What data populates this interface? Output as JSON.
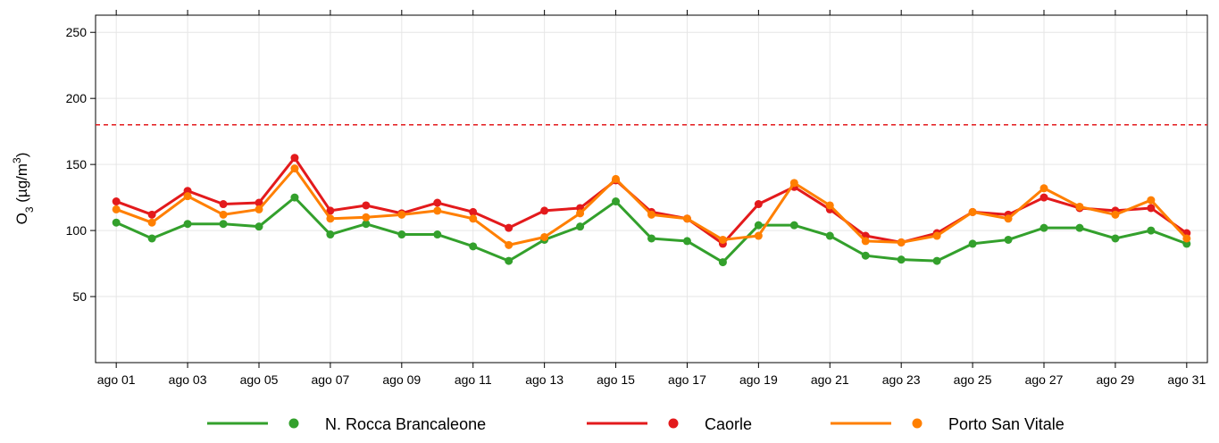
{
  "chart_data": {
    "type": "line",
    "ylabel": {
      "base": "O",
      "sub": "3",
      "mid": " (µg/m",
      "sup": "3",
      "end": ")"
    },
    "categories": [
      "ago 01",
      null,
      "ago 03",
      null,
      "ago 05",
      null,
      "ago 07",
      null,
      "ago 09",
      null,
      "ago 11",
      null,
      "ago 13",
      null,
      "ago 15",
      null,
      "ago 17",
      null,
      "ago 19",
      null,
      "ago 21",
      null,
      "ago 23",
      null,
      "ago 25",
      null,
      "ago 27",
      null,
      "ago 29",
      null,
      "ago 31"
    ],
    "series": [
      {
        "name": "N. Rocca Brancaleone",
        "color": "#33a02c",
        "values": [
          106,
          94,
          105,
          105,
          103,
          125,
          97,
          105,
          97,
          97,
          88,
          77,
          93,
          103,
          122,
          94,
          92,
          76,
          104,
          104,
          96,
          81,
          78,
          77,
          90,
          93,
          102,
          102,
          94,
          100,
          90
        ]
      },
      {
        "name": "Caorle",
        "color": "#e31a1c",
        "values": [
          122,
          112,
          130,
          120,
          121,
          155,
          115,
          119,
          113,
          121,
          114,
          102,
          115,
          117,
          138,
          114,
          109,
          90,
          120,
          133,
          116,
          96,
          91,
          98,
          114,
          112,
          125,
          117,
          115,
          117,
          98
        ]
      },
      {
        "name": "Porto San Vitale",
        "color": "#ff7f00",
        "values": [
          116,
          106,
          126,
          112,
          116,
          147,
          109,
          110,
          112,
          115,
          109,
          89,
          95,
          113,
          139,
          112,
          109,
          93,
          96,
          136,
          119,
          92,
          91,
          96,
          114,
          109,
          132,
          118,
          112,
          123,
          94
        ]
      }
    ],
    "threshold": 180,
    "threshold_color": "#e31a1c",
    "ylim": [
      0,
      263
    ],
    "yticks": [
      50,
      100,
      150,
      200,
      250
    ],
    "grid": true,
    "legend": "bottom"
  }
}
